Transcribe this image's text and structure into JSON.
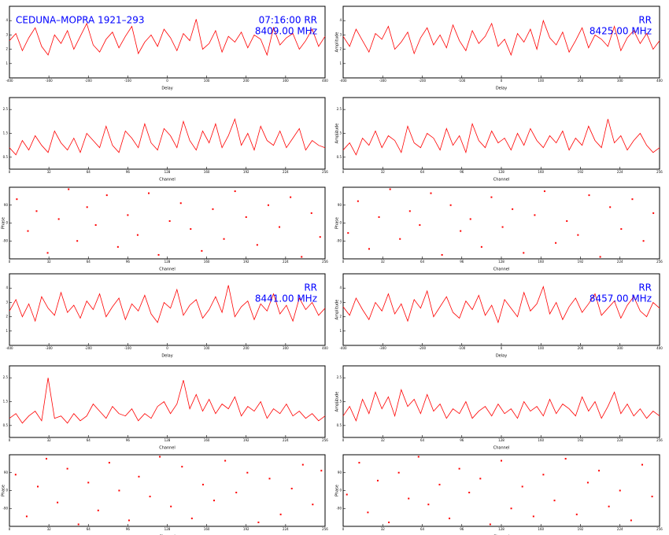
{
  "chart_data": [
    {
      "type": "line",
      "title": "CEDUNA–MOPRA 1921–293",
      "annotations": [
        "07:16:00 RR",
        "8409.00 MHz"
      ],
      "xlabel": "Delay",
      "color": "#ff0000",
      "xlim": [
        -400,
        400
      ],
      "xticks": [
        -400,
        -300,
        -200,
        -100,
        0,
        100,
        200,
        300,
        400
      ],
      "ylim": [
        0,
        5
      ],
      "yticks": [
        1,
        2,
        3,
        4
      ],
      "values": [
        2.6,
        3.1,
        1.9,
        2.8,
        3.5,
        2.2,
        1.6,
        3.0,
        2.4,
        3.3,
        2.0,
        2.9,
        3.8,
        2.3,
        1.8,
        2.7,
        3.2,
        2.1,
        2.9,
        3.6,
        1.7,
        2.5,
        3.0,
        2.2,
        3.4,
        2.8,
        1.9,
        3.1,
        2.6,
        4.1,
        2.0,
        2.4,
        3.3,
        1.8,
        2.9,
        2.5,
        3.2,
        2.1,
        3.0,
        2.7,
        1.6,
        3.5,
        2.3,
        2.8,
        3.1,
        2.0,
        2.6,
        3.4,
        2.2,
        2.9
      ]
    },
    {
      "type": "line",
      "annotations": [
        "RR",
        "8425.00 MHz"
      ],
      "xlabel": "Delay",
      "ylabel": "Amplitude",
      "color": "#ff0000",
      "xlim": [
        -400,
        400
      ],
      "xticks": [
        -400,
        -300,
        -200,
        -100,
        0,
        100,
        200,
        300,
        400
      ],
      "ylim": [
        0,
        5
      ],
      "yticks": [
        1,
        2,
        3,
        4
      ],
      "values": [
        2.9,
        2.2,
        3.4,
        2.6,
        1.8,
        3.1,
        2.7,
        3.6,
        2.0,
        2.5,
        3.2,
        1.7,
        2.8,
        3.5,
        2.3,
        3.0,
        2.1,
        3.7,
        2.6,
        1.9,
        3.3,
        2.4,
        2.9,
        3.8,
        2.2,
        2.7,
        1.6,
        3.1,
        2.5,
        3.4,
        2.0,
        4.0,
        2.8,
        2.3,
        3.2,
        1.8,
        2.6,
        3.5,
        2.1,
        3.0,
        2.7,
        2.2,
        3.6,
        1.9,
        2.8,
        3.3,
        2.4,
        3.1,
        2.0,
        2.6
      ]
    },
    {
      "type": "line",
      "xlabel": "Channel",
      "color": "#ff0000",
      "xlim": [
        0,
        256
      ],
      "xticks": [
        0,
        32,
        64,
        96,
        128,
        160,
        192,
        224,
        256
      ],
      "ylim": [
        0,
        3
      ],
      "yticks": [
        0.5,
        1.5,
        2.5
      ],
      "values": [
        0.9,
        0.6,
        1.2,
        0.8,
        1.4,
        1.0,
        0.7,
        1.6,
        1.1,
        0.8,
        1.3,
        0.7,
        1.5,
        1.2,
        0.9,
        1.8,
        1.0,
        0.7,
        1.6,
        1.3,
        0.9,
        1.9,
        1.1,
        0.8,
        1.7,
        1.4,
        0.9,
        2.0,
        1.2,
        0.8,
        1.6,
        1.1,
        1.9,
        0.9,
        1.4,
        2.1,
        1.0,
        1.5,
        0.8,
        1.8,
        1.2,
        1.0,
        1.6,
        0.9,
        1.3,
        1.7,
        0.8,
        1.2,
        1.0,
        0.9
      ]
    },
    {
      "type": "line",
      "xlabel": "Channel",
      "ylabel": "Amplitude",
      "color": "#ff0000",
      "xlim": [
        0,
        256
      ],
      "xticks": [
        0,
        32,
        64,
        96,
        128,
        160,
        192,
        224,
        256
      ],
      "ylim": [
        0,
        3
      ],
      "yticks": [
        0.5,
        1.5,
        2.5
      ],
      "values": [
        0.8,
        1.1,
        0.6,
        1.3,
        1.0,
        1.6,
        0.9,
        1.4,
        1.2,
        0.7,
        1.8,
        1.1,
        0.9,
        1.5,
        1.3,
        0.8,
        1.7,
        1.0,
        1.4,
        0.7,
        1.9,
        1.2,
        0.9,
        1.6,
        1.1,
        1.3,
        0.8,
        1.5,
        1.0,
        1.7,
        1.2,
        0.9,
        1.4,
        1.1,
        1.6,
        0.8,
        1.3,
        1.0,
        1.8,
        1.2,
        0.9,
        2.1,
        1.1,
        1.4,
        0.8,
        1.2,
        1.5,
        1.0,
        0.7,
        0.9
      ]
    },
    {
      "type": "scatter",
      "xlabel": "Channel",
      "ylabel": "Phase",
      "color": "#ff0000",
      "xlim": [
        0,
        256
      ],
      "xticks": [
        0,
        32,
        64,
        96,
        128,
        160,
        192,
        224,
        256
      ],
      "ylim": [
        -180,
        180
      ],
      "yticks": [
        -90,
        0,
        90
      ],
      "x": [
        6,
        15,
        22,
        31,
        40,
        48,
        55,
        63,
        70,
        79,
        88,
        96,
        104,
        113,
        121,
        130,
        139,
        147,
        156,
        165,
        174,
        183,
        192,
        201,
        210,
        219,
        228,
        237,
        245,
        252
      ],
      "values": [
        120,
        -40,
        60,
        -150,
        20,
        170,
        -90,
        80,
        -10,
        140,
        -120,
        40,
        -60,
        150,
        -160,
        10,
        100,
        -30,
        -140,
        70,
        -80,
        160,
        30,
        -110,
        90,
        -20,
        130,
        -170,
        50,
        -70
      ]
    },
    {
      "type": "scatter",
      "xlabel": "Channel",
      "ylabel": "Phase",
      "color": "#ff0000",
      "xlim": [
        0,
        256
      ],
      "xticks": [
        0,
        32,
        64,
        96,
        128,
        160,
        192,
        224,
        256
      ],
      "ylim": [
        -180,
        180
      ],
      "yticks": [
        -90,
        0,
        90
      ],
      "x": [
        4,
        12,
        21,
        29,
        38,
        46,
        54,
        62,
        71,
        80,
        87,
        95,
        103,
        112,
        120,
        129,
        137,
        146,
        155,
        163,
        172,
        181,
        190,
        199,
        208,
        216,
        225,
        234,
        243,
        251
      ],
      "values": [
        -50,
        110,
        -130,
        30,
        170,
        -80,
        60,
        -10,
        150,
        -160,
        90,
        -40,
        20,
        -120,
        130,
        -20,
        70,
        -150,
        40,
        160,
        -100,
        10,
        -60,
        140,
        -170,
        80,
        -30,
        120,
        -90,
        50
      ]
    },
    {
      "type": "line",
      "annotations": [
        "RR",
        "8441.00 MHz"
      ],
      "xlabel": "Delay",
      "color": "#ff0000",
      "xlim": [
        -400,
        400
      ],
      "xticks": [
        -400,
        -300,
        -200,
        -100,
        0,
        100,
        200,
        300,
        400
      ],
      "ylim": [
        0,
        5
      ],
      "yticks": [
        1,
        2,
        3,
        4
      ],
      "values": [
        2.4,
        3.2,
        2.0,
        2.9,
        1.7,
        3.4,
        2.6,
        2.1,
        3.7,
        2.3,
        2.8,
        1.9,
        3.1,
        2.5,
        3.6,
        2.0,
        2.7,
        3.3,
        1.8,
        2.9,
        2.4,
        3.5,
        2.2,
        1.6,
        3.0,
        2.6,
        3.9,
        2.1,
        2.8,
        3.2,
        1.9,
        2.5,
        3.4,
        2.3,
        4.2,
        2.0,
        2.7,
        3.1,
        1.8,
        2.9,
        2.4,
        3.6,
        2.2,
        2.8,
        1.7,
        3.3,
        2.5,
        3.0,
        2.1,
        2.6
      ]
    },
    {
      "type": "line",
      "annotations": [
        "RR",
        "8457.00 MHz"
      ],
      "xlabel": "Delay",
      "ylabel": "Amplitude",
      "color": "#ff0000",
      "xlim": [
        -400,
        400
      ],
      "xticks": [
        -400,
        -300,
        -200,
        -100,
        0,
        100,
        200,
        300,
        400
      ],
      "ylim": [
        0,
        5
      ],
      "yticks": [
        1,
        2,
        3,
        4
      ],
      "values": [
        2.7,
        2.1,
        3.3,
        2.5,
        1.8,
        3.0,
        2.4,
        3.6,
        2.2,
        2.9,
        1.7,
        3.2,
        2.6,
        3.8,
        2.0,
        2.7,
        3.4,
        2.3,
        1.9,
        3.1,
        2.5,
        3.5,
        2.1,
        2.8,
        1.6,
        3.2,
        2.6,
        2.0,
        3.7,
        2.4,
        2.9,
        4.1,
        2.2,
        3.0,
        1.8,
        2.7,
        3.3,
        2.3,
        2.9,
        3.6,
        2.1,
        2.6,
        3.1,
        1.9,
        2.8,
        3.4,
        2.4,
        2.0,
        3.0,
        2.6
      ]
    },
    {
      "type": "line",
      "xlabel": "Channel",
      "color": "#ff0000",
      "xlim": [
        0,
        256
      ],
      "xticks": [
        0,
        32,
        64,
        96,
        128,
        160,
        192,
        224,
        256
      ],
      "ylim": [
        0,
        3
      ],
      "yticks": [
        0.5,
        1.5,
        2.5
      ],
      "values": [
        0.8,
        1.0,
        0.6,
        0.9,
        1.1,
        0.7,
        2.5,
        0.8,
        0.9,
        0.6,
        1.0,
        0.7,
        0.9,
        1.4,
        1.1,
        0.8,
        1.3,
        1.0,
        0.9,
        1.2,
        0.7,
        1.0,
        0.8,
        1.3,
        1.5,
        1.0,
        1.4,
        2.4,
        1.2,
        1.8,
        1.1,
        1.6,
        1.0,
        1.4,
        1.2,
        1.7,
        0.9,
        1.3,
        1.1,
        1.5,
        0.8,
        1.2,
        1.0,
        1.4,
        0.9,
        1.1,
        0.8,
        1.0,
        0.7,
        0.9
      ]
    },
    {
      "type": "line",
      "xlabel": "Channel",
      "ylabel": "Amplitude",
      "color": "#ff0000",
      "xlim": [
        0,
        256
      ],
      "xticks": [
        0,
        32,
        64,
        96,
        128,
        160,
        192,
        224,
        256
      ],
      "ylim": [
        0,
        3
      ],
      "yticks": [
        0.5,
        1.5,
        2.5
      ],
      "values": [
        0.9,
        1.3,
        0.7,
        1.6,
        1.0,
        1.9,
        1.2,
        1.7,
        0.9,
        2.0,
        1.3,
        1.6,
        1.0,
        1.8,
        1.1,
        1.4,
        0.8,
        1.2,
        1.0,
        1.5,
        0.8,
        1.1,
        1.3,
        0.9,
        1.4,
        1.0,
        1.2,
        0.8,
        1.5,
        1.1,
        1.3,
        0.9,
        1.6,
        1.0,
        1.4,
        1.2,
        0.9,
        1.7,
        1.1,
        1.5,
        0.8,
        1.3,
        1.9,
        1.0,
        1.4,
        0.9,
        1.2,
        0.8,
        1.1,
        0.9
      ]
    },
    {
      "type": "scatter",
      "xlabel": "Channel",
      "ylabel": "Phase",
      "color": "#ff0000",
      "xlim": [
        0,
        256
      ],
      "xticks": [
        0,
        32,
        64,
        96,
        128,
        160,
        192,
        224,
        256
      ],
      "ylim": [
        -180,
        180
      ],
      "yticks": [
        -90,
        0,
        90
      ],
      "x": [
        5,
        14,
        23,
        30,
        39,
        47,
        56,
        64,
        72,
        81,
        89,
        97,
        105,
        114,
        122,
        131,
        140,
        148,
        157,
        166,
        175,
        184,
        193,
        202,
        211,
        220,
        229,
        238,
        246,
        253
      ],
      "values": [
        80,
        -130,
        20,
        160,
        -60,
        110,
        -170,
        40,
        -100,
        140,
        0,
        -150,
        70,
        -30,
        170,
        -80,
        120,
        -140,
        30,
        -50,
        150,
        -10,
        90,
        -160,
        60,
        -120,
        10,
        130,
        -70,
        100
      ]
    },
    {
      "type": "scatter",
      "xlabel": "Channel",
      "ylabel": "Phase",
      "color": "#ff0000",
      "xlim": [
        0,
        256
      ],
      "xticks": [
        0,
        32,
        64,
        96,
        128,
        160,
        192,
        224,
        256
      ],
      "ylim": [
        -180,
        180
      ],
      "yticks": [
        -90,
        0,
        90
      ],
      "x": [
        3,
        13,
        20,
        28,
        37,
        45,
        53,
        61,
        69,
        78,
        86,
        94,
        102,
        111,
        119,
        128,
        136,
        145,
        154,
        162,
        171,
        180,
        189,
        198,
        207,
        215,
        224,
        233,
        242,
        250
      ],
      "values": [
        -20,
        140,
        -110,
        50,
        -160,
        90,
        -40,
        170,
        -70,
        30,
        -140,
        110,
        -10,
        60,
        -170,
        150,
        -90,
        20,
        -130,
        80,
        -50,
        160,
        -120,
        40,
        100,
        -80,
        0,
        -150,
        130,
        -30
      ]
    }
  ]
}
